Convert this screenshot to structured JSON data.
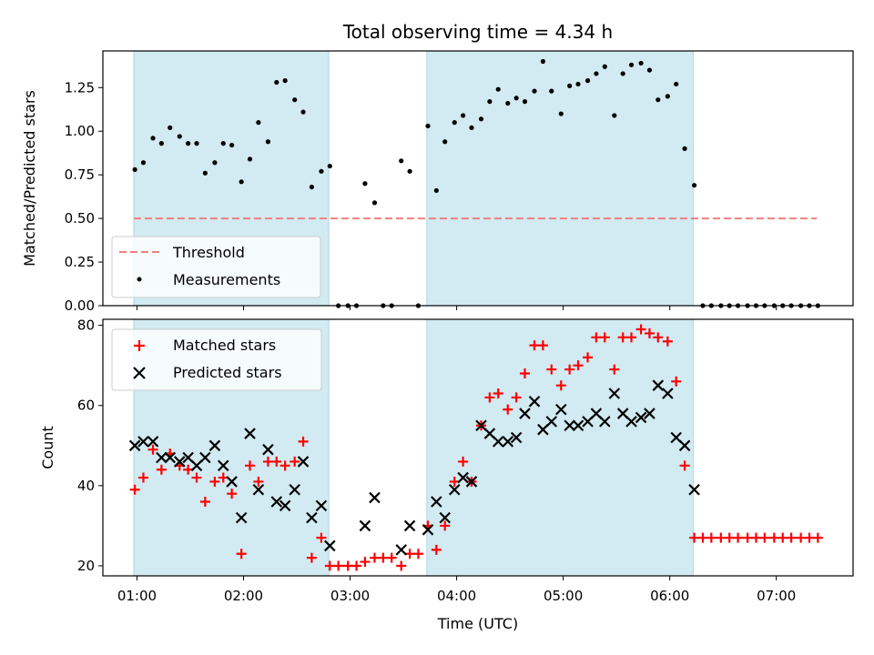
{
  "figure": {
    "title": "Total observing time = 4.34 h",
    "xlabel": "Time (UTC)",
    "xticks": [
      "01:00",
      "02:00",
      "03:00",
      "04:00",
      "05:00",
      "06:00",
      "07:00"
    ]
  },
  "colors": {
    "shade": "#add8e6",
    "threshold": "#f08080",
    "measurements": "#000000",
    "matched": "#ff0000",
    "predicted": "#000000"
  },
  "chart_data": [
    {
      "type": "scatter",
      "ylabel": "Matched/Predicted stars",
      "x_unit": "hours UTC",
      "xlim": [
        0.68,
        7.72
      ],
      "ylim": [
        0.0,
        1.46
      ],
      "yticks": [
        0.0,
        0.25,
        0.5,
        0.75,
        1.0,
        1.25
      ],
      "shaded_intervals": [
        [
          0.97,
          2.8
        ],
        [
          3.72,
          6.22
        ]
      ],
      "threshold": {
        "name": "Threshold",
        "value": 0.5,
        "x_range": [
          0.97,
          7.38
        ]
      },
      "legend_position": "lower-left",
      "series": [
        {
          "name": "Measurements",
          "x": [
            0.98,
            1.06,
            1.15,
            1.23,
            1.31,
            1.4,
            1.48,
            1.56,
            1.64,
            1.73,
            1.81,
            1.89,
            1.98,
            2.06,
            2.14,
            2.23,
            2.31,
            2.39,
            2.48,
            2.56,
            2.64,
            2.73,
            2.81,
            2.89,
            2.98,
            3.06,
            3.14,
            3.23,
            3.31,
            3.39,
            3.48,
            3.56,
            3.64,
            3.73,
            3.81,
            3.89,
            3.98,
            4.06,
            4.14,
            4.23,
            4.31,
            4.39,
            4.48,
            4.56,
            4.64,
            4.73,
            4.81,
            4.89,
            4.98,
            5.06,
            5.14,
            5.23,
            5.31,
            5.39,
            5.48,
            5.56,
            5.64,
            5.73,
            5.81,
            5.89,
            5.98,
            6.06,
            6.14,
            6.23,
            6.31,
            6.39,
            6.48,
            6.56,
            6.64,
            6.73,
            6.81,
            6.89,
            6.98,
            7.06,
            7.14,
            7.23,
            7.31,
            7.39
          ],
          "y": [
            0.78,
            0.82,
            0.96,
            0.93,
            1.02,
            0.97,
            0.93,
            0.93,
            0.76,
            0.82,
            0.93,
            0.92,
            0.71,
            0.84,
            1.05,
            0.94,
            1.28,
            1.29,
            1.18,
            1.11,
            0.68,
            0.77,
            0.8,
            0.0,
            0.0,
            0.0,
            0.7,
            0.59,
            0.0,
            0.0,
            0.83,
            0.77,
            0.0,
            1.03,
            0.66,
            0.94,
            1.05,
            1.09,
            1.02,
            1.07,
            1.17,
            1.24,
            1.16,
            1.19,
            1.17,
            1.23,
            1.4,
            1.23,
            1.1,
            1.26,
            1.27,
            1.29,
            1.33,
            1.37,
            1.09,
            1.33,
            1.38,
            1.39,
            1.35,
            1.18,
            1.2,
            1.27,
            0.9,
            0.69,
            0.0,
            0.0,
            0.0,
            0.0,
            0.0,
            0.0,
            0.0,
            0.0,
            0.0,
            0.0,
            0.0,
            0.0,
            0.0,
            0.0
          ]
        }
      ]
    },
    {
      "type": "scatter",
      "ylabel": "Count",
      "x_unit": "hours UTC",
      "xlim": [
        0.68,
        7.72
      ],
      "ylim": [
        17.5,
        81.5
      ],
      "yticks": [
        20,
        40,
        60,
        80
      ],
      "shaded_intervals": [
        [
          0.97,
          2.8
        ],
        [
          3.72,
          6.22
        ]
      ],
      "legend_position": "upper-left",
      "series": [
        {
          "name": "Matched stars",
          "marker": "plus",
          "x": [
            0.98,
            1.06,
            1.15,
            1.23,
            1.31,
            1.4,
            1.48,
            1.56,
            1.64,
            1.73,
            1.81,
            1.89,
            1.98,
            2.06,
            2.14,
            2.23,
            2.31,
            2.39,
            2.48,
            2.56,
            2.64,
            2.73,
            2.81,
            2.89,
            2.98,
            3.06,
            3.14,
            3.23,
            3.31,
            3.39,
            3.48,
            3.56,
            3.64,
            3.73,
            3.81,
            3.89,
            3.98,
            4.06,
            4.14,
            4.23,
            4.31,
            4.39,
            4.48,
            4.56,
            4.64,
            4.73,
            4.81,
            4.89,
            4.98,
            5.06,
            5.14,
            5.23,
            5.31,
            5.39,
            5.48,
            5.56,
            5.64,
            5.73,
            5.81,
            5.89,
            5.98,
            6.06,
            6.14,
            6.23,
            6.31,
            6.39,
            6.48,
            6.56,
            6.64,
            6.73,
            6.81,
            6.89,
            6.98,
            7.06,
            7.14,
            7.23,
            7.31,
            7.39
          ],
          "y": [
            39,
            42,
            49,
            44,
            48,
            45,
            44,
            42,
            36,
            41,
            42,
            38,
            23,
            45,
            41,
            46,
            46,
            45,
            46,
            51,
            22,
            27,
            20,
            20,
            20,
            20,
            21,
            22,
            22,
            22,
            20,
            23,
            23,
            30,
            24,
            30,
            41,
            46,
            41,
            55,
            62,
            63,
            59,
            62,
            68,
            75,
            75,
            69,
            65,
            69,
            70,
            72,
            77,
            77,
            69,
            77,
            77,
            79,
            78,
            77,
            76,
            66,
            45,
            27,
            27,
            27,
            27,
            27,
            27,
            27,
            27,
            27,
            27,
            27,
            27,
            27,
            27,
            27
          ]
        },
        {
          "name": "Predicted stars",
          "marker": "x",
          "x": [
            0.98,
            1.06,
            1.15,
            1.23,
            1.31,
            1.4,
            1.48,
            1.56,
            1.64,
            1.73,
            1.81,
            1.89,
            1.98,
            2.06,
            2.14,
            2.23,
            2.31,
            2.39,
            2.48,
            2.56,
            2.64,
            2.73,
            2.81,
            3.14,
            3.23,
            3.48,
            3.56,
            3.73,
            3.81,
            3.89,
            3.98,
            4.06,
            4.14,
            4.23,
            4.31,
            4.39,
            4.48,
            4.56,
            4.64,
            4.73,
            4.81,
            4.89,
            4.98,
            5.06,
            5.14,
            5.23,
            5.31,
            5.39,
            5.48,
            5.56,
            5.64,
            5.73,
            5.81,
            5.89,
            5.98,
            6.06,
            6.14,
            6.23
          ],
          "y": [
            50,
            51,
            51,
            47,
            47,
            46,
            47,
            45,
            47,
            50,
            45,
            41,
            32,
            53,
            39,
            49,
            36,
            35,
            39,
            46,
            32,
            35,
            25,
            30,
            37,
            24,
            30,
            29,
            36,
            32,
            39,
            42,
            41,
            55,
            53,
            51,
            51,
            52,
            58,
            61,
            54,
            56,
            59,
            55,
            55,
            56,
            58,
            56,
            63,
            58,
            56,
            57,
            58,
            65,
            63,
            52,
            50,
            39
          ]
        }
      ]
    }
  ]
}
